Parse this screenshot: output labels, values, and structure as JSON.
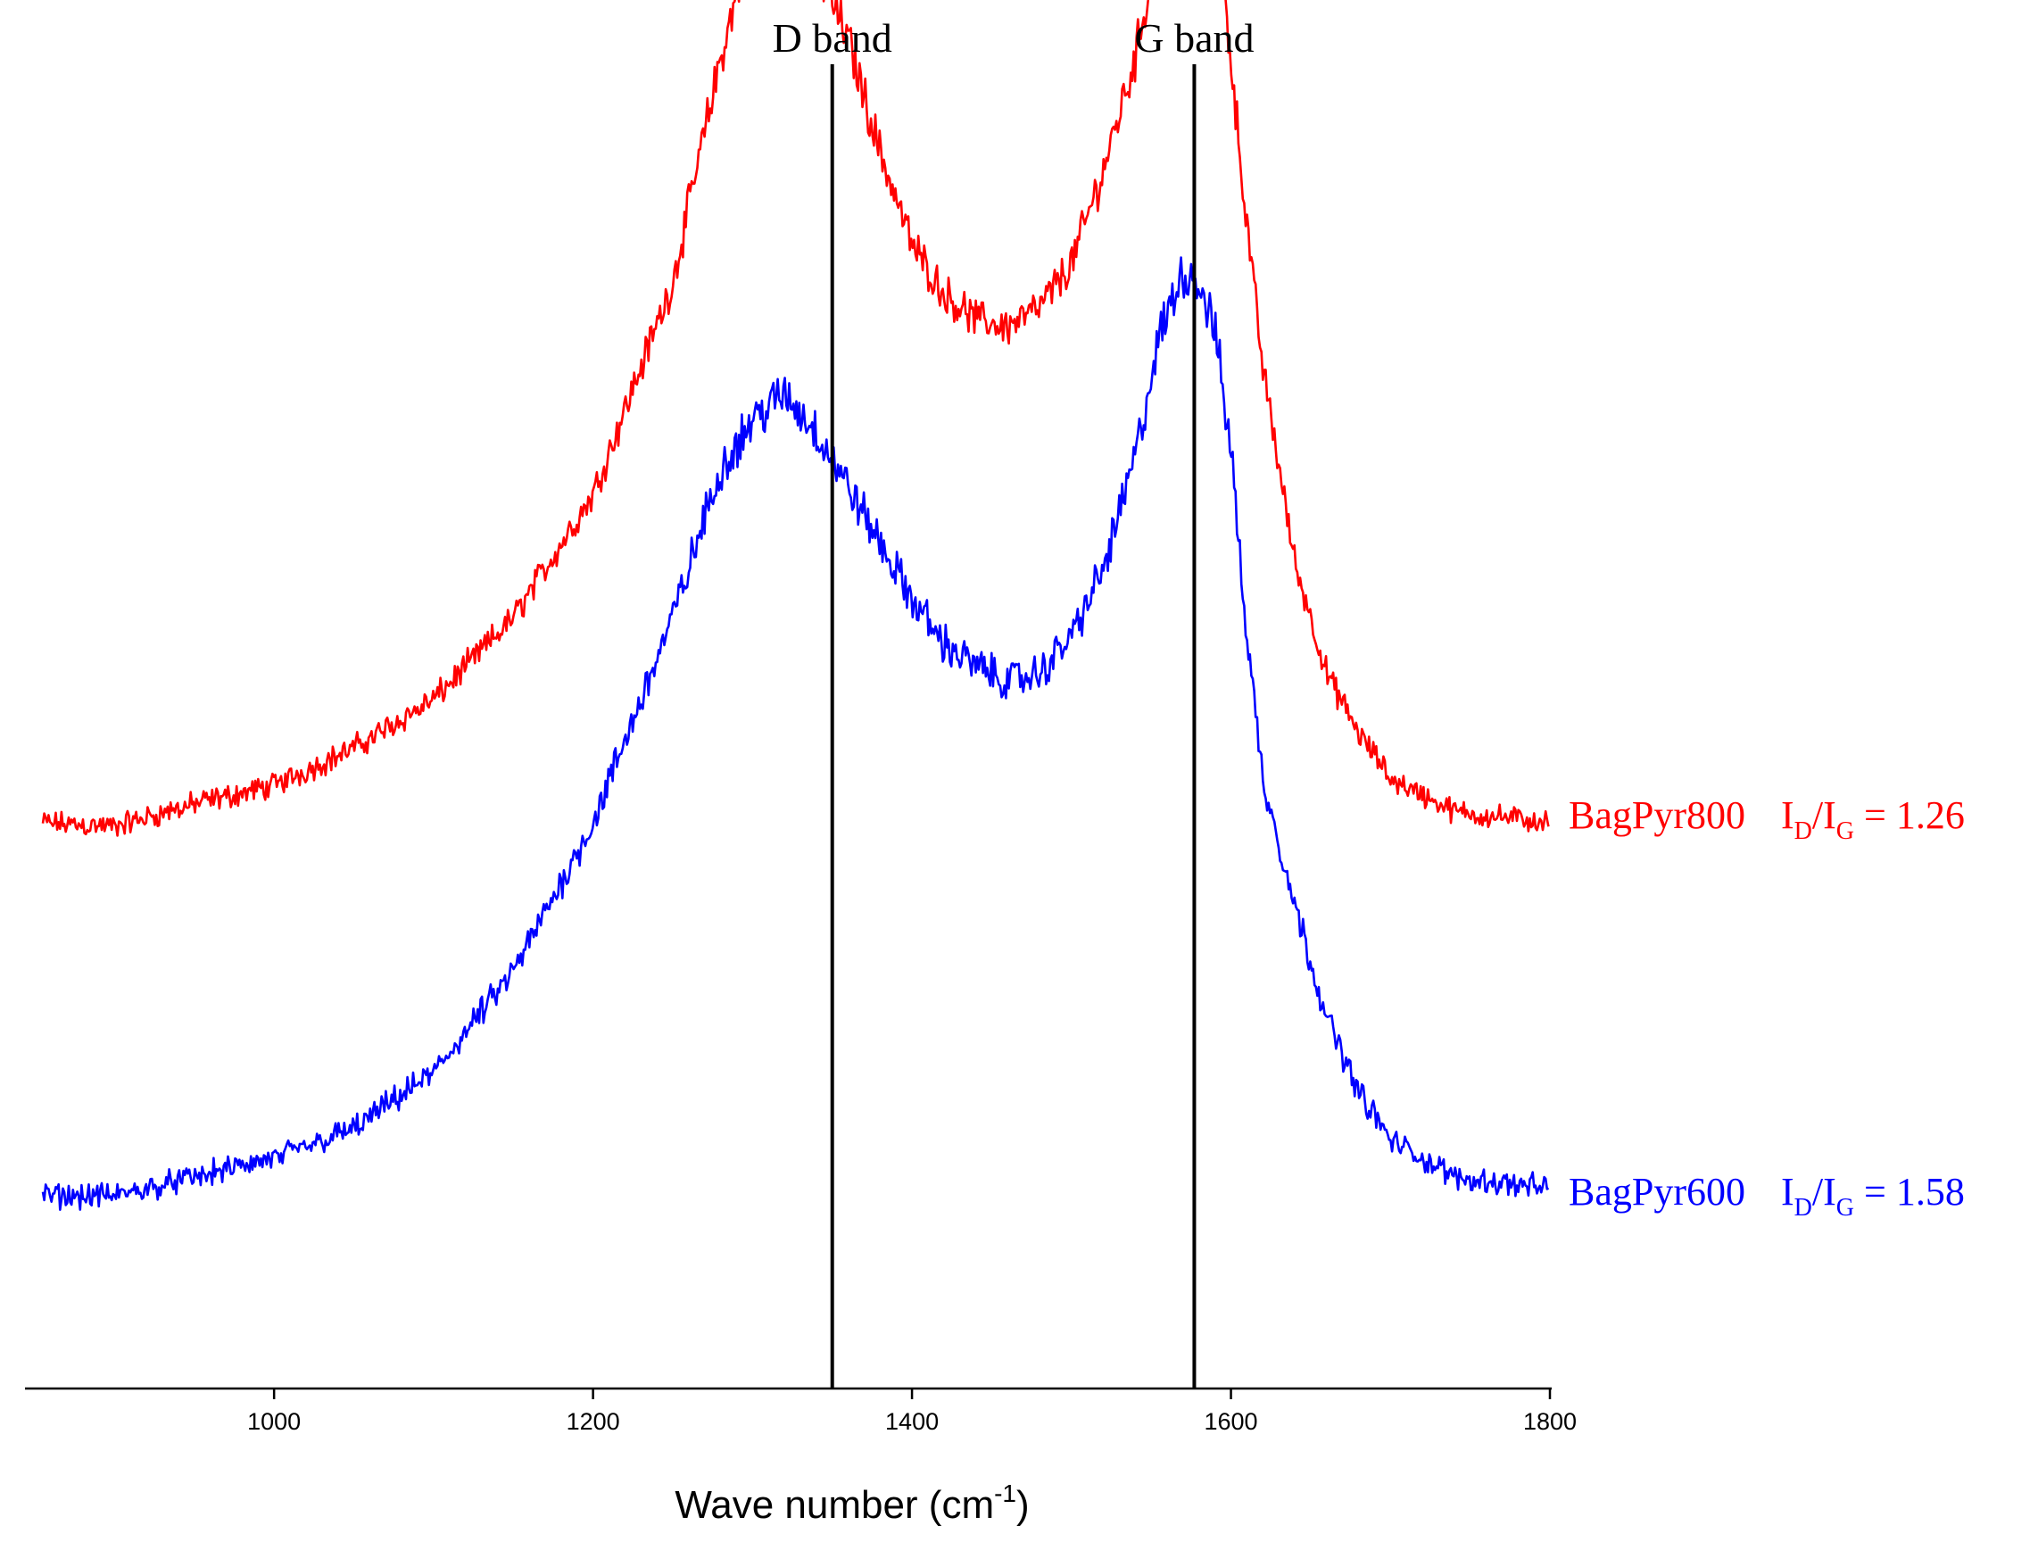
{
  "chart_data": {
    "type": "line",
    "xlabel": "Wave number (cm",
    "xlabel_superscript": "-1",
    "xlabel_suffix": ")",
    "xlim": [
      855,
      1800
    ],
    "x_ticks": [
      1000,
      1200,
      1400,
      1600,
      1800
    ],
    "y_axis_shown": false,
    "grid": false,
    "reference_lines": [
      {
        "x": 1350,
        "label": "D band"
      },
      {
        "x": 1577,
        "label": "G band"
      }
    ],
    "series": [
      {
        "name": "BagPyr800",
        "ratio_label": "I",
        "ratio_sub_d": "D",
        "ratio_slash": "/I",
        "ratio_sub_g": "G",
        "ratio_value": " = 1.26",
        "color": "#ff0000",
        "points": [
          [
            855,
            1.0
          ],
          [
            900,
            0.99
          ],
          [
            950,
            1.05
          ],
          [
            1000,
            1.1
          ],
          [
            1050,
            1.2
          ],
          [
            1100,
            1.33
          ],
          [
            1150,
            1.55
          ],
          [
            1200,
            1.88
          ],
          [
            1250,
            2.45
          ],
          [
            1280,
            3.05
          ],
          [
            1300,
            3.38
          ],
          [
            1320,
            3.48
          ],
          [
            1340,
            3.3
          ],
          [
            1360,
            3.1
          ],
          [
            1380,
            2.8
          ],
          [
            1400,
            2.55
          ],
          [
            1420,
            2.42
          ],
          [
            1440,
            2.35
          ],
          [
            1460,
            2.33
          ],
          [
            1480,
            2.38
          ],
          [
            1500,
            2.5
          ],
          [
            1520,
            2.75
          ],
          [
            1540,
            3.05
          ],
          [
            1560,
            3.5
          ],
          [
            1575,
            3.62
          ],
          [
            1590,
            3.45
          ],
          [
            1600,
            3.05
          ],
          [
            1610,
            2.6
          ],
          [
            1620,
            2.22
          ],
          [
            1640,
            1.7
          ],
          [
            1660,
            1.4
          ],
          [
            1680,
            1.24
          ],
          [
            1700,
            1.12
          ],
          [
            1740,
            1.03
          ],
          [
            1800,
            1.0
          ]
        ]
      },
      {
        "name": "BagPyr600",
        "ratio_label": "I",
        "ratio_sub_d": "D",
        "ratio_slash": "/I",
        "ratio_sub_g": "G",
        "ratio_value": " = 1.58",
        "color": "#0000ff",
        "points": [
          [
            855,
            0.0
          ],
          [
            900,
            0.0
          ],
          [
            950,
            0.05
          ],
          [
            1000,
            0.1
          ],
          [
            1050,
            0.18
          ],
          [
            1100,
            0.33
          ],
          [
            1150,
            0.6
          ],
          [
            1200,
            1.0
          ],
          [
            1250,
            1.55
          ],
          [
            1280,
            1.95
          ],
          [
            1300,
            2.08
          ],
          [
            1320,
            2.15
          ],
          [
            1340,
            2.05
          ],
          [
            1360,
            1.9
          ],
          [
            1380,
            1.75
          ],
          [
            1400,
            1.6
          ],
          [
            1420,
            1.48
          ],
          [
            1440,
            1.42
          ],
          [
            1460,
            1.38
          ],
          [
            1480,
            1.4
          ],
          [
            1500,
            1.5
          ],
          [
            1520,
            1.68
          ],
          [
            1540,
            1.98
          ],
          [
            1555,
            2.3
          ],
          [
            1570,
            2.48
          ],
          [
            1580,
            2.45
          ],
          [
            1590,
            2.32
          ],
          [
            1600,
            2.0
          ],
          [
            1610,
            1.5
          ],
          [
            1620,
            1.12
          ],
          [
            1640,
            0.78
          ],
          [
            1660,
            0.48
          ],
          [
            1680,
            0.28
          ],
          [
            1700,
            0.15
          ],
          [
            1740,
            0.05
          ],
          [
            1800,
            0.02
          ]
        ]
      }
    ]
  }
}
